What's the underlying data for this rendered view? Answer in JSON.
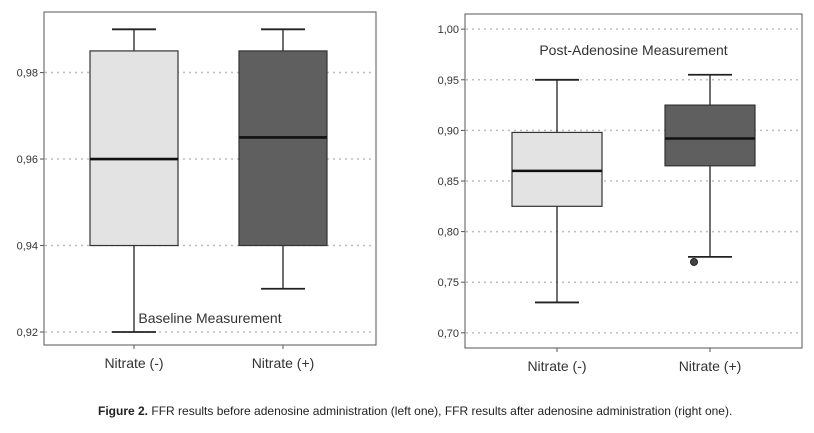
{
  "caption": {
    "label": "Figure 2.",
    "text": "FFR results before adenosine administration (left one), FFR results after adenosine administration (right one)."
  },
  "chart_data": [
    {
      "type": "boxplot",
      "title": "Baseline Measurement",
      "title_position": "bottom-center",
      "categories": [
        "Nitrate (-)",
        "Nitrate (+)"
      ],
      "ylim": [
        0.917,
        0.994
      ],
      "yticks": [
        "0,92",
        "0,94",
        "0,96",
        "0,98"
      ],
      "ytick_values": [
        0.92,
        0.94,
        0.96,
        0.98
      ],
      "grid": true,
      "boxes": [
        {
          "category": "Nitrate (-)",
          "min": 0.92,
          "q1": 0.94,
          "median": 0.96,
          "q3": 0.985,
          "max": 0.99,
          "outliers": [],
          "color": "#e3e3e3"
        },
        {
          "category": "Nitrate (+)",
          "min": 0.93,
          "q1": 0.94,
          "median": 0.965,
          "q3": 0.985,
          "max": 0.99,
          "outliers": [],
          "color": "#5f5f5f"
        }
      ]
    },
    {
      "type": "boxplot",
      "title": "Post-Adenosine Measurement",
      "title_position": "top-center",
      "categories": [
        "Nitrate (-)",
        "Nitrate (+)"
      ],
      "ylim": [
        0.685,
        1.015
      ],
      "yticks": [
        "0,70",
        "0,75",
        "0,80",
        "0,85",
        "0,90",
        "0,95",
        "1,00"
      ],
      "ytick_values": [
        0.7,
        0.75,
        0.8,
        0.85,
        0.9,
        0.95,
        1.0
      ],
      "grid": true,
      "boxes": [
        {
          "category": "Nitrate (-)",
          "min": 0.73,
          "q1": 0.825,
          "median": 0.86,
          "q3": 0.898,
          "max": 0.95,
          "outliers": [],
          "color": "#e3e3e3"
        },
        {
          "category": "Nitrate (+)",
          "min": 0.775,
          "q1": 0.865,
          "median": 0.892,
          "q3": 0.925,
          "max": 0.955,
          "outliers": [
            0.77
          ],
          "color": "#5f5f5f"
        }
      ]
    }
  ]
}
